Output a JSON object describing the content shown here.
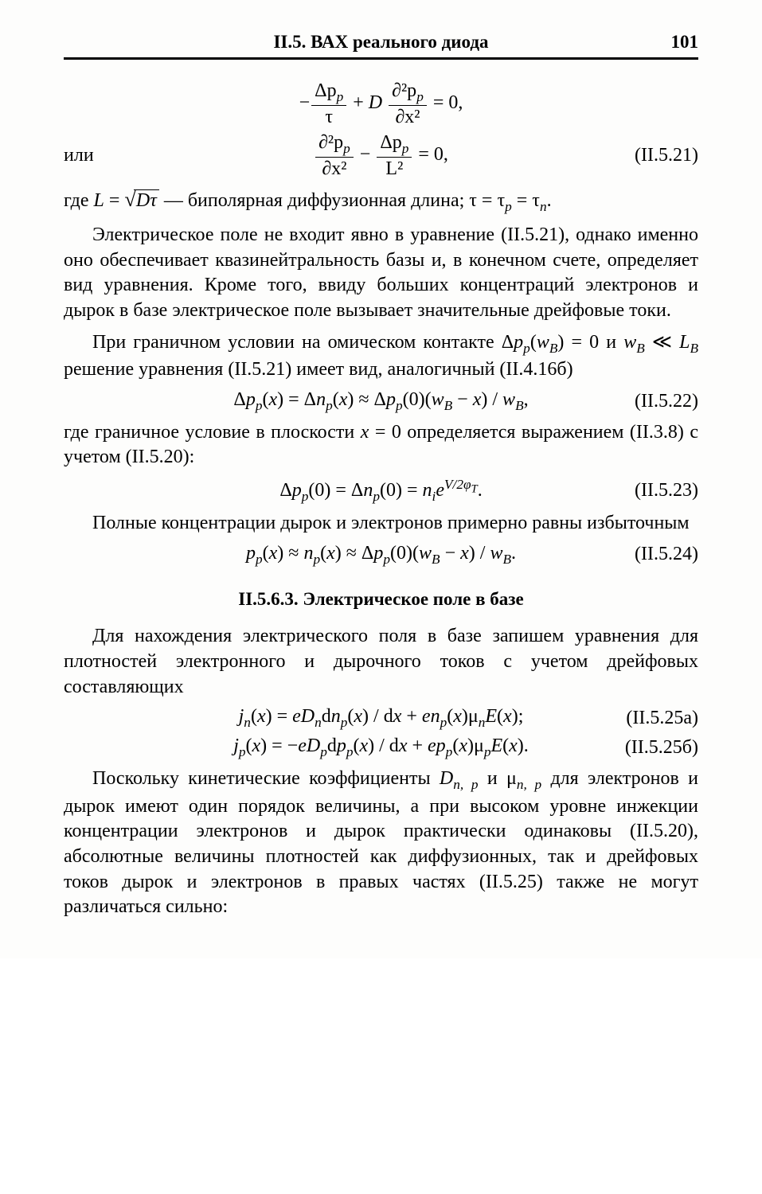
{
  "header": {
    "title": "II.5. ВАХ реального диода",
    "page_number": "101"
  },
  "eq_block_1": {
    "line1_lhs_num": "Δp",
    "line1_lhs_sub": "p",
    "line1_lhs_den": "τ",
    "line1_mid_D": "D",
    "line1_rhs_num": "∂²p",
    "line1_rhs_sub": "p",
    "line1_rhs_den": "∂x²",
    "line1_tail": " = 0,",
    "or_label": "или",
    "line2_lhs_num": "∂²p",
    "line2_lhs_sub": "p",
    "line2_lhs_den": "∂x²",
    "line2_rhs_num": "Δp",
    "line2_rhs_sub": "p",
    "line2_rhs_den": "L²",
    "line2_tail": " = 0,",
    "num": "(II.5.21)"
  },
  "para1": "где L = √(Dτ) — биполярная диффузионная длина; τ = τₚ = τₙ.",
  "para2": "Электрическое поле не входит явно в уравнение (II.5.21), однако именно оно обеспечивает квазинейтральность базы и, в конечном счете, определяет вид уравнения. Кроме того, ввиду больших концентраций электронов и дырок в базе электрическое поле вызывает значительные дрейфовые токи.",
  "para3": "При граничном условии на омическом контакте Δpₚ(wʙ) = 0 и wʙ ≪ Lʙ решение уравнения (II.5.21) имеет вид, аналогичный (II.4.16б)",
  "eq22": {
    "body": "Δpₚ(x) = Δnₚ(x) ≈ Δpₚ(0)(wʙ − x) / wʙ,",
    "num": "(II.5.22)"
  },
  "para4": "где граничное условие в плоскости x = 0 определяется выражением (II.3.8) с учетом (II.5.20):",
  "eq23": {
    "body_pre": "Δpₚ(0) = Δnₚ(0) = nᵢe",
    "exp": "V/2φₜ",
    "body_post": ".",
    "num": "(II.5.23)"
  },
  "para5": "Полные концентрации дырок и электронов примерно равны избыточным",
  "eq24": {
    "body": "pₚ(x) ≈ nₚ(x) ≈ Δpₚ(0)(wʙ − x) / wʙ.",
    "num": "(II.5.24)"
  },
  "section_head": "II.5.6.3. Электрическое поле в базе",
  "para6": "Для нахождения электрического поля в базе запишем уравнения для плотностей электронного и дырочного токов с учетом дрейфовых составляющих",
  "eq25a": {
    "body": "jₙ(x) = eDₙdnₚ(x) / dx + enₚ(x)μₙE(x);",
    "num": "(II.5.25а)"
  },
  "eq25b": {
    "body": "jₚ(x) = −eDₚdpₚ(x) / dx + epₚ(x)μₚE(x).",
    "num": "(II.5.25б)"
  },
  "para7": "Поскольку кинетические коэффициенты Dₙ,ₚ и μₙ,ₚ для электронов и дырок имеют один порядок величины, а при высоком уровне инжекции концентрации электронов и дырок практически одинаковы (II.5.20), абсолютные величины плотностей как диффузионных, так и дрейфовых токов дырок и электронов в правых частях (II.5.25) также не могут различаться сильно:"
}
